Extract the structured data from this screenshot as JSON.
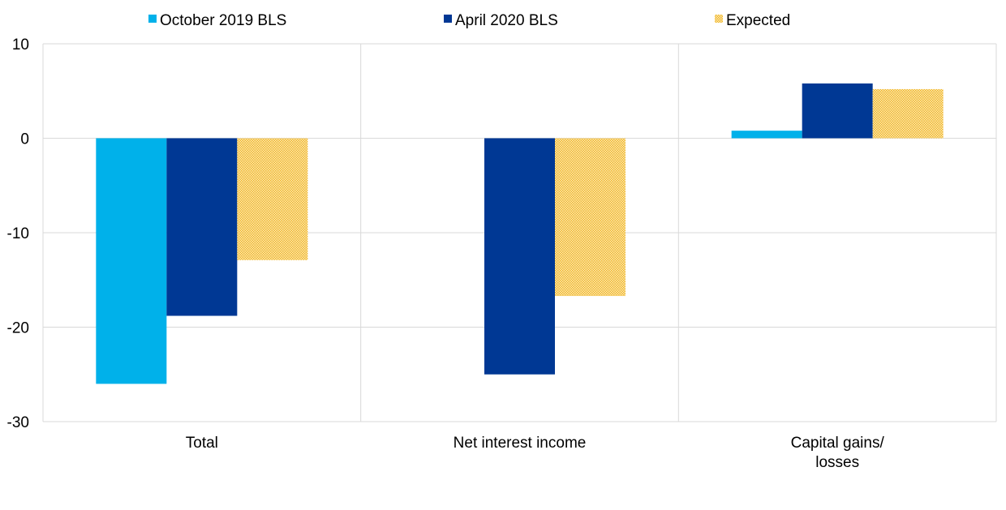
{
  "chart_data": {
    "type": "bar",
    "title": "",
    "xlabel": "",
    "ylabel": "",
    "ylim": [
      -30,
      10
    ],
    "yticks": [
      10,
      0,
      -10,
      -20,
      -30
    ],
    "grid": true,
    "legend_position": "top",
    "categories": [
      [
        "Total"
      ],
      [
        "Net interest income"
      ],
      [
        "Capital gains/",
        "losses"
      ]
    ],
    "series": [
      {
        "name": "October 2019 BLS",
        "color": "#00b1ea",
        "pattern": "solid",
        "values": [
          -26,
          null,
          0.8
        ]
      },
      {
        "name": "April 2020 BLS",
        "color": "#003894",
        "pattern": "solid",
        "values": [
          -18.8,
          -25,
          5.8
        ]
      },
      {
        "name": "Expected",
        "color": "#ffb400",
        "pattern": "dotted",
        "values": [
          -12.9,
          -16.7,
          5.2
        ]
      }
    ]
  }
}
